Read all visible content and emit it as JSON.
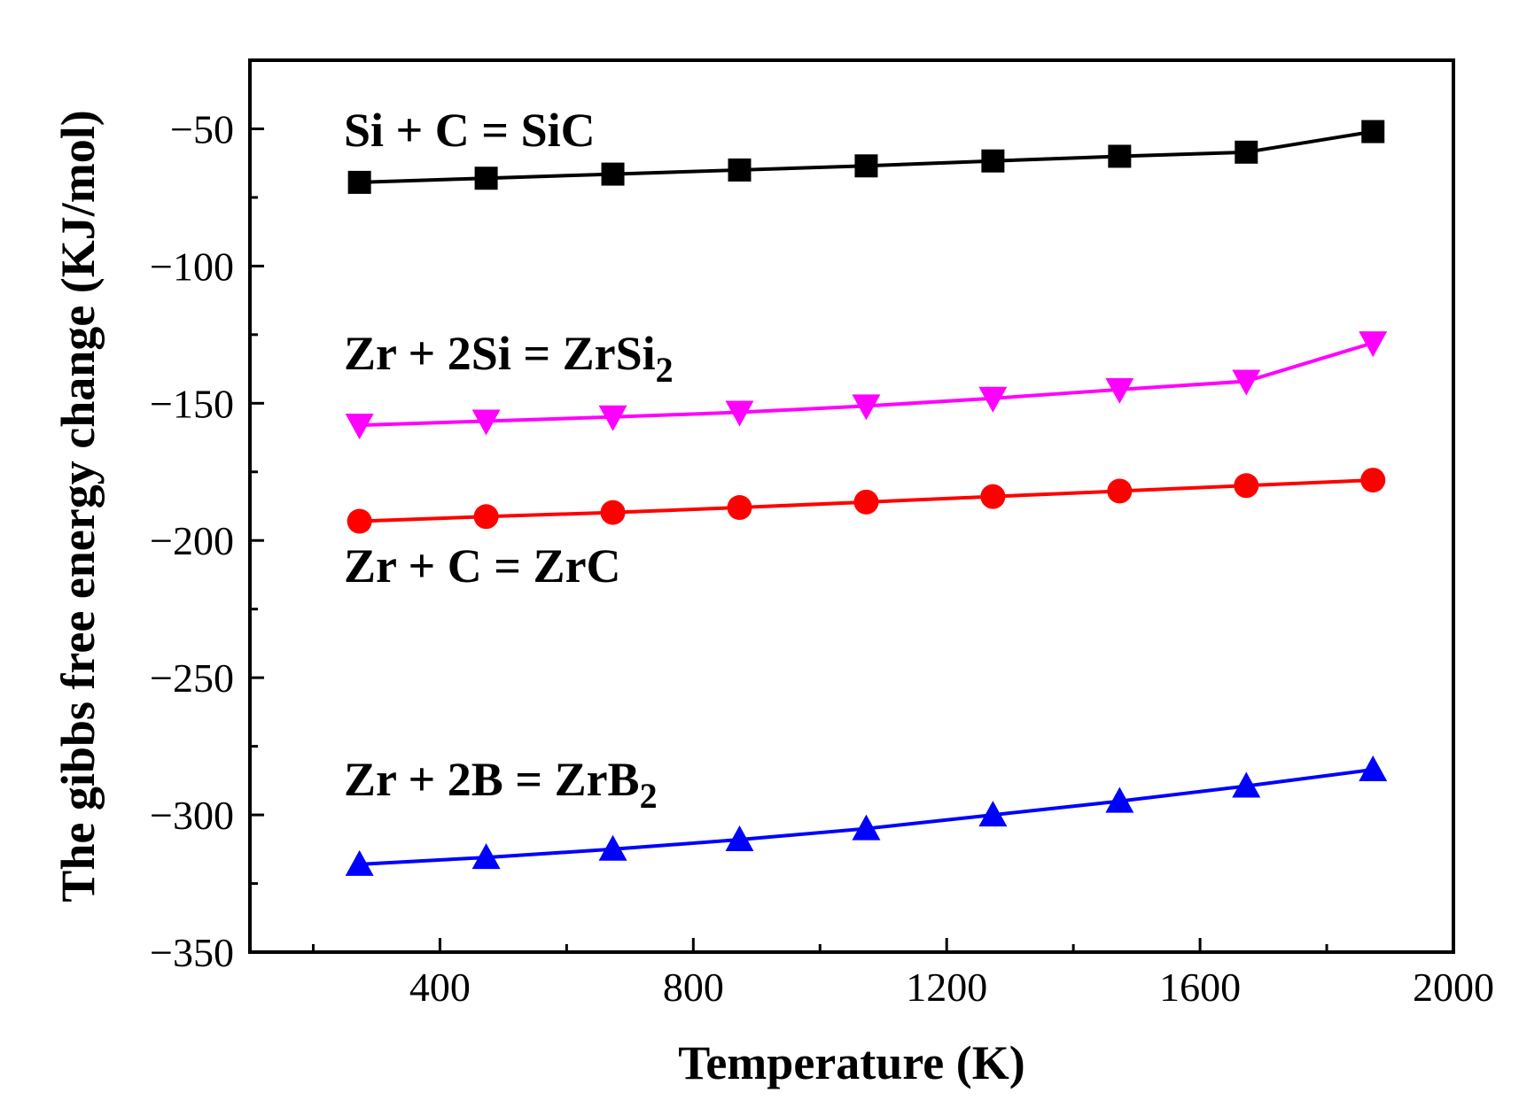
{
  "chart_data": {
    "type": "line",
    "title": "",
    "xlabel": "Temperature (K)",
    "ylabel": "The gibbs free energy change (KJ/mol)",
    "xlim": [
      100,
      2000
    ],
    "ylim": [
      -350,
      -25
    ],
    "xticks": [
      400,
      800,
      1200,
      1600,
      2000
    ],
    "xticks_minor": [
      200,
      600,
      1000,
      1400,
      1800
    ],
    "yticks": [
      -50,
      -100,
      -150,
      -200,
      -250,
      -300,
      -350
    ],
    "yticks_minor": [
      -75,
      -125,
      -175,
      -225,
      -275,
      -325
    ],
    "x": [
      273,
      473,
      673,
      873,
      1073,
      1273,
      1473,
      1673,
      1873
    ],
    "series": [
      {
        "name": "Si + C = SiC",
        "label_main": "Si + C = SiC",
        "label_sub": "",
        "color": "#000000",
        "marker": "square",
        "values": [
          -69.5,
          -68.0,
          -66.5,
          -65.0,
          -63.5,
          -61.7,
          -60.0,
          -58.5,
          -51.0
        ]
      },
      {
        "name": "Zr + 2Si = ZrSi2",
        "label_main": "Zr + 2Si = ZrSi",
        "label_sub": "2",
        "color": "#ff00ff",
        "marker": "triangle-down",
        "values": [
          -158.0,
          -156.5,
          -155.0,
          -153.3,
          -151.0,
          -148.2,
          -145.0,
          -142.0,
          -128.0
        ]
      },
      {
        "name": "Zr + C = ZrC",
        "label_main": "Zr + C = ZrC",
        "label_sub": "",
        "color": "#ff0000",
        "marker": "circle",
        "values": [
          -193.0,
          -191.3,
          -189.8,
          -188.0,
          -186.0,
          -184.0,
          -182.0,
          -180.0,
          -178.0
        ]
      },
      {
        "name": "Zr + 2B = ZrB2",
        "label_main": "Zr + 2B = ZrB",
        "label_sub": "2",
        "color": "#0000ff",
        "marker": "triangle-up",
        "values": [
          -318.0,
          -315.5,
          -312.5,
          -309.0,
          -305.0,
          -300.0,
          -295.0,
          -289.5,
          -283.5
        ]
      }
    ]
  }
}
